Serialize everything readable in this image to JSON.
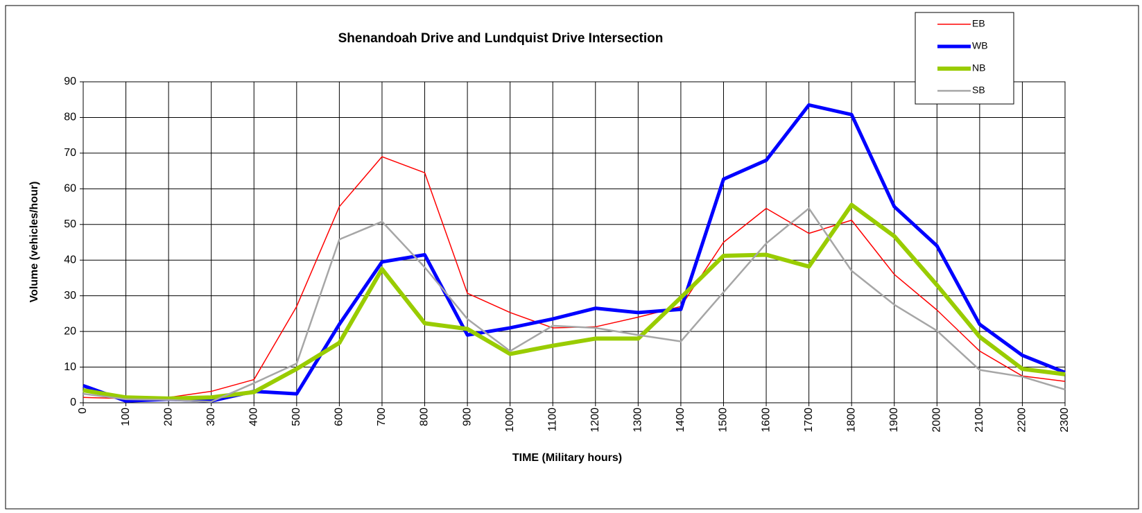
{
  "chart_data": {
    "type": "line",
    "title": "Shenandoah Drive and Lundquist Drive Intersection",
    "x_label": "TIME (Military hours)",
    "y_label": "Volume (vehicles/hour)",
    "x": [
      0,
      100,
      200,
      300,
      400,
      500,
      600,
      700,
      800,
      900,
      1000,
      1100,
      1200,
      1300,
      1400,
      1500,
      1600,
      1700,
      1800,
      1900,
      2000,
      2100,
      2200,
      2300
    ],
    "xlim": [
      0,
      2300
    ],
    "xticks": [
      0,
      100,
      200,
      300,
      400,
      500,
      600,
      700,
      800,
      900,
      1000,
      1100,
      1200,
      1300,
      1400,
      1500,
      1600,
      1700,
      1800,
      1900,
      2000,
      2100,
      2200,
      2300
    ],
    "ylim": [
      0,
      90
    ],
    "yticks": [
      0,
      10,
      20,
      30,
      40,
      50,
      60,
      70,
      80,
      90
    ],
    "grid": true,
    "legend": "top-right",
    "series": [
      {
        "name": "EB",
        "color": "#ff0000",
        "values": [
          1.5,
          1.2,
          1.5,
          3.2,
          6.5,
          27,
          55,
          69,
          64.5,
          30.7,
          25.3,
          21,
          21.3,
          24,
          27,
          45,
          54.5,
          47.5,
          51.2,
          36,
          26,
          14.5,
          7.5,
          6
        ]
      },
      {
        "name": "WB",
        "color": "#0000ff",
        "values": [
          4.8,
          0.5,
          1,
          0.5,
          3.2,
          2.5,
          22,
          39.5,
          41.5,
          19,
          21,
          23.5,
          26.5,
          25.3,
          26.2,
          62.7,
          68,
          83.5,
          80.8,
          55,
          44,
          22,
          13.3,
          8.5
        ]
      },
      {
        "name": "NB",
        "color": "#99cc00",
        "values": [
          3.5,
          1.5,
          1.2,
          1.5,
          3,
          9.5,
          16.8,
          37.5,
          22.3,
          20.7,
          13.7,
          16,
          18,
          18,
          29.5,
          41.2,
          41.5,
          38.2,
          55.5,
          46.7,
          33,
          18.5,
          9.5,
          8
        ]
      },
      {
        "name": "SB",
        "color": "#a6a6a6",
        "values": [
          2.5,
          1,
          0.8,
          0.3,
          5.5,
          11,
          45.8,
          50.8,
          38,
          23.5,
          14.5,
          21.6,
          21,
          19,
          17.2,
          31,
          44.7,
          54.5,
          37,
          27.5,
          20.2,
          9.2,
          7.3,
          3.7
        ]
      }
    ]
  }
}
